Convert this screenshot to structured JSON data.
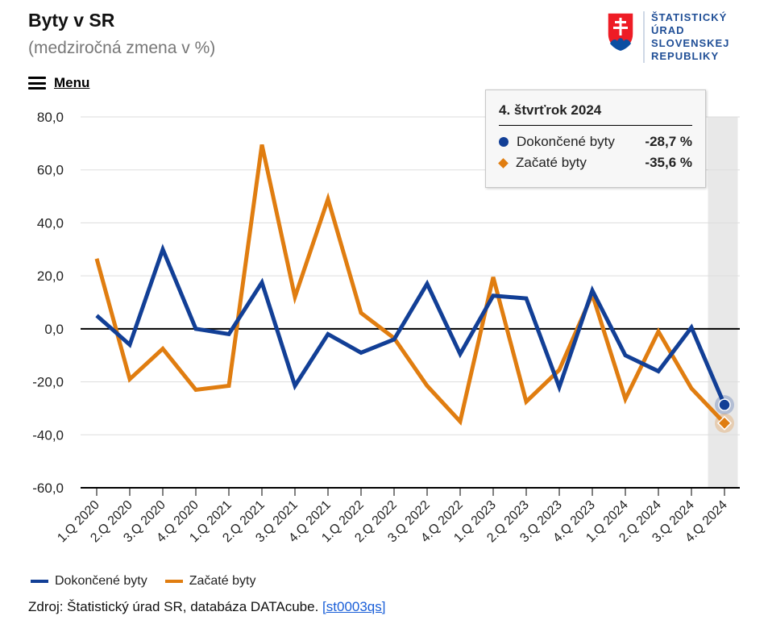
{
  "header": {
    "title": "Byty v SR",
    "subtitle": "(medziročná zmena v %)",
    "menu_label": "Menu"
  },
  "logo": {
    "lines": [
      "ŠTATISTICKÝ",
      "ÚRAD",
      "SLOVENSKEJ",
      "REPUBLIKY"
    ]
  },
  "tooltip": {
    "header": "4. štvrťrok 2024",
    "rows": [
      {
        "name": "Dokončené byty",
        "value": "-28,7 %"
      },
      {
        "name": "Začaté byty",
        "value": "-35,6 %"
      }
    ]
  },
  "legend": {
    "items": [
      "Dokončené byty",
      "Začaté byty"
    ]
  },
  "source": {
    "text": "Zdroj: Štatistický úrad SR, databáza DATAcube.",
    "link_text": "[st0003qs]"
  },
  "colors": {
    "completed": "#123f96",
    "started": "#e07d10",
    "grid": "#dddddd",
    "highlight_band": "#e8e8e8"
  },
  "chart_data": {
    "type": "line",
    "title": "Byty v SR",
    "subtitle": "(medziročná zmena v %)",
    "categories": [
      "1.Q 2020",
      "2.Q 2020",
      "3.Q 2020",
      "4.Q 2020",
      "1.Q 2021",
      "2.Q 2021",
      "3.Q 2021",
      "4.Q 2021",
      "1.Q 2022",
      "2.Q 2022",
      "3.Q 2022",
      "4.Q 2022",
      "1.Q 2023",
      "2.Q 2023",
      "3.Q 2023",
      "4.Q 2023",
      "1.Q 2024",
      "2.Q 2024",
      "3.Q 2024",
      "4.Q 2024"
    ],
    "ylim": [
      -60,
      80
    ],
    "yticks": [
      "80,0",
      "60,0",
      "40,0",
      "20,0",
      "0,0",
      "-20,0",
      "-40,0",
      "-60,0"
    ],
    "ytick_values": [
      80,
      60,
      40,
      20,
      0,
      -20,
      -40,
      -60
    ],
    "grid": true,
    "legend_position": "bottom-left",
    "highlighted_category": "4.Q 2024",
    "series": [
      {
        "name": "Dokončené byty",
        "values": [
          5.0,
          -6.0,
          30.0,
          0.0,
          -2.0,
          17.5,
          -21.5,
          -2.0,
          -9.0,
          -4.0,
          17.0,
          -9.5,
          12.5,
          11.5,
          -22.0,
          14.5,
          -10.0,
          -16.0,
          0.5,
          -28.7
        ]
      },
      {
        "name": "Začaté byty",
        "values": [
          26.5,
          -19.0,
          -7.5,
          -23.0,
          -21.5,
          69.5,
          12.0,
          49.0,
          6.0,
          -3.5,
          -21.5,
          -35.0,
          19.5,
          -27.5,
          -15.5,
          13.0,
          -26.5,
          -1.0,
          -22.5,
          -35.6
        ]
      }
    ]
  }
}
